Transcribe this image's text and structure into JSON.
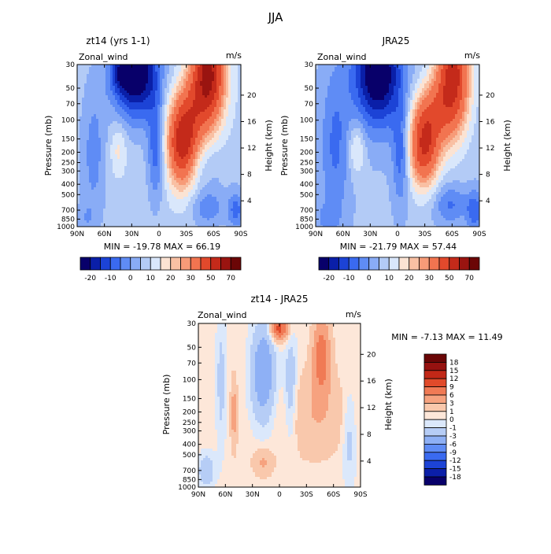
{
  "figure": {
    "season": "JJA"
  },
  "palettes": {
    "full": [
      "#08006a",
      "#0a1fa8",
      "#1c43d6",
      "#3a6af0",
      "#5f8cf5",
      "#89acf6",
      "#b3cbf6",
      "#d9e7fb",
      "#fbe3d3",
      "#f9c0a3",
      "#f79b78",
      "#f27450",
      "#e2492c",
      "#c42a1a",
      "#9a1410",
      "#6b0606"
    ],
    "diff": [
      "#08006a",
      "#0b1fa8",
      "#1c43d6",
      "#3a6af0",
      "#5f8cf5",
      "#8eb0f5",
      "#b6cdf6",
      "#dbe8fb",
      "#fde7d9",
      "#f9c8ac",
      "#f6a27f",
      "#f07a55",
      "#e14a2a",
      "#c22817",
      "#961210",
      "#6a0606"
    ]
  },
  "chart_data": [
    {
      "type": "heatmap",
      "title": "zt14 (yrs 1-1)",
      "left_label": "Zonal_wind",
      "right_label": "m/s",
      "xlabel": "",
      "ylabel": "Pressure (mb)",
      "y2label": "Height (km)",
      "x_ticks": [
        "90N",
        "60N",
        "30N",
        "0",
        "30S",
        "60S",
        "90S"
      ],
      "y_ticks": [
        30,
        50,
        70,
        100,
        150,
        200,
        250,
        300,
        400,
        500,
        700,
        850,
        1000
      ],
      "y2_ticks": [
        4,
        8,
        12,
        16,
        20
      ],
      "stats": "MIN = -19.78   MAX =  66.19",
      "min": -19.78,
      "max": 66.19,
      "colorbar": {
        "orientation": "horizontal",
        "labels": [
          "-20",
          "-10",
          "0",
          "10",
          "20",
          "30",
          "50",
          "70"
        ]
      }
    },
    {
      "type": "heatmap",
      "title": "JRA25",
      "left_label": "Zonal_wind",
      "right_label": "m/s",
      "xlabel": "",
      "ylabel": "Pressure (mb)",
      "y2label": "Height (km)",
      "x_ticks": [
        "90N",
        "60N",
        "30N",
        "0",
        "30S",
        "60S",
        "90S"
      ],
      "y_ticks": [
        30,
        50,
        70,
        100,
        150,
        200,
        250,
        300,
        400,
        500,
        700,
        850,
        1000
      ],
      "y2_ticks": [
        4,
        8,
        12,
        16,
        20
      ],
      "stats": "MIN = -21.79   MAX =  57.44",
      "min": -21.79,
      "max": 57.44,
      "colorbar": {
        "orientation": "horizontal",
        "labels": [
          "-20",
          "-10",
          "0",
          "10",
          "20",
          "30",
          "50",
          "70"
        ]
      }
    },
    {
      "type": "heatmap",
      "title": "zt14 - JRA25",
      "left_label": "Zonal_wind",
      "right_label": "m/s",
      "xlabel": "",
      "ylabel": "Pressure (mb)",
      "y2label": "Height (km)",
      "x_ticks": [
        "90N",
        "60N",
        "30N",
        "0",
        "30S",
        "60S",
        "90S"
      ],
      "y_ticks": [
        30,
        50,
        70,
        100,
        150,
        200,
        250,
        300,
        400,
        500,
        700,
        850,
        1000
      ],
      "y2_ticks": [
        4,
        8,
        12,
        16,
        20
      ],
      "stats": "MIN =  -7.13   MAX =  11.49",
      "min": -7.13,
      "max": 11.49,
      "colorbar": {
        "orientation": "vertical",
        "labels": [
          "18",
          "15",
          "12",
          "9",
          "6",
          "3",
          "1",
          "0",
          "-1",
          "-3",
          "-6",
          "-9",
          "-12",
          "-15",
          "-18"
        ]
      }
    }
  ]
}
